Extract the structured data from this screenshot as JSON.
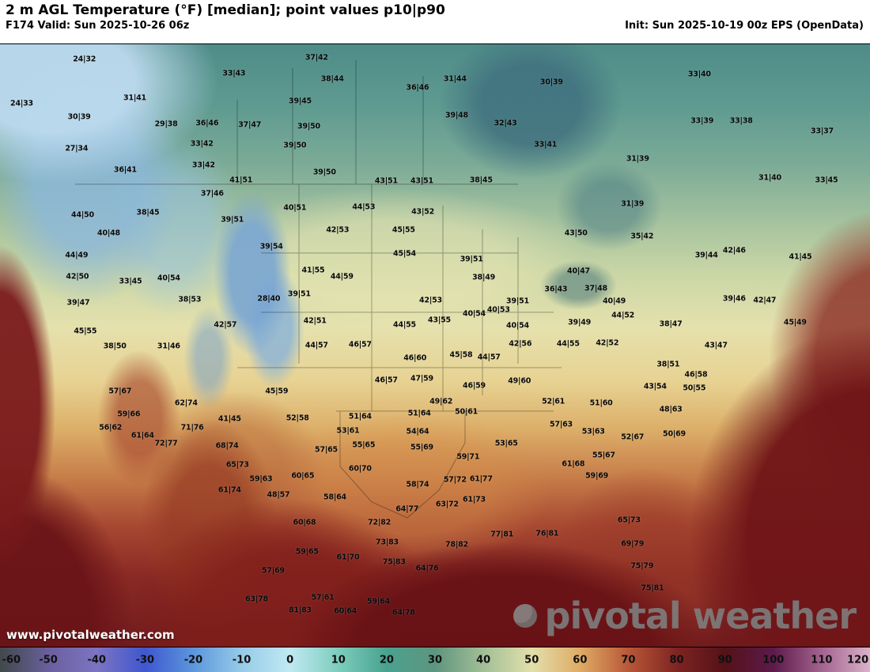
{
  "header": {
    "title": "2 m AGL Temperature (°F) [median]; point values p10|p90",
    "valid": "F174 Valid: Sun 2025-10-26 06z",
    "init": "Init: Sun 2025-10-19 00z EPS (OpenData)"
  },
  "watermark": "www.pivotalweather.com",
  "logo": {
    "text": "pivotal weather"
  },
  "colorbar": {
    "min": -60,
    "max": 120,
    "ticks": [
      -60,
      -50,
      -40,
      -30,
      -20,
      -10,
      0,
      10,
      20,
      30,
      40,
      50,
      60,
      70,
      80,
      90,
      100,
      110,
      120
    ],
    "stops": [
      {
        "v": -60,
        "c": "#41494a"
      },
      {
        "v": -50,
        "c": "#6a5f9e"
      },
      {
        "v": -40,
        "c": "#7d74c2"
      },
      {
        "v": -30,
        "c": "#3f57cf"
      },
      {
        "v": -20,
        "c": "#5b96dc"
      },
      {
        "v": -10,
        "c": "#97cbe8"
      },
      {
        "v": 0,
        "c": "#c0e9f2"
      },
      {
        "v": 10,
        "c": "#7dcdbd"
      },
      {
        "v": 20,
        "c": "#49a28f"
      },
      {
        "v": 30,
        "c": "#5e957e"
      },
      {
        "v": 40,
        "c": "#a2bf96"
      },
      {
        "v": 50,
        "c": "#e2dfab"
      },
      {
        "v": 60,
        "c": "#dfab65"
      },
      {
        "v": 70,
        "c": "#b85838"
      },
      {
        "v": 80,
        "c": "#7e2422"
      },
      {
        "v": 90,
        "c": "#541218"
      },
      {
        "v": 100,
        "c": "#5c1a4a"
      },
      {
        "v": 110,
        "c": "#a3638f"
      },
      {
        "v": 120,
        "c": "#d9b3c9"
      }
    ]
  },
  "map": {
    "points": [
      [
        9.7,
        2.5,
        "24|32"
      ],
      [
        26.9,
        4.9,
        "33|43"
      ],
      [
        36.4,
        2.2,
        "37|42"
      ],
      [
        38.2,
        5.8,
        "38|44"
      ],
      [
        52.3,
        5.8,
        "31|44"
      ],
      [
        63.4,
        6.3,
        "30|39"
      ],
      [
        80.4,
        5.0,
        "33|40"
      ],
      [
        2.5,
        9.8,
        "24|33"
      ],
      [
        15.5,
        8.9,
        "31|41"
      ],
      [
        34.5,
        9.4,
        "39|45"
      ],
      [
        48.0,
        7.2,
        "36|46"
      ],
      [
        9.1,
        12.1,
        "30|39"
      ],
      [
        19.1,
        13.3,
        "29|38"
      ],
      [
        23.8,
        13.1,
        "36|46"
      ],
      [
        28.7,
        13.4,
        "37|47"
      ],
      [
        35.5,
        13.6,
        "39|50"
      ],
      [
        52.5,
        11.8,
        "39|48"
      ],
      [
        58.1,
        13.1,
        "32|43"
      ],
      [
        80.7,
        12.7,
        "33|39"
      ],
      [
        85.2,
        12.7,
        "33|38"
      ],
      [
        94.5,
        14.4,
        "33|37"
      ],
      [
        8.8,
        17.3,
        "27|34"
      ],
      [
        23.2,
        16.5,
        "33|42"
      ],
      [
        33.9,
        16.8,
        "39|50"
      ],
      [
        62.7,
        16.7,
        "33|41"
      ],
      [
        14.4,
        20.9,
        "36|41"
      ],
      [
        23.4,
        20.1,
        "33|42"
      ],
      [
        37.3,
        21.3,
        "39|50"
      ],
      [
        73.3,
        19.0,
        "31|39"
      ],
      [
        27.7,
        22.6,
        "41|51"
      ],
      [
        24.4,
        24.8,
        "37|46"
      ],
      [
        44.4,
        22.7,
        "43|51"
      ],
      [
        48.5,
        22.7,
        "43|51"
      ],
      [
        55.3,
        22.6,
        "38|45"
      ],
      [
        72.7,
        26.5,
        "31|39"
      ],
      [
        88.5,
        22.2,
        "31|40"
      ],
      [
        95.0,
        22.6,
        "33|45"
      ],
      [
        17.0,
        28.0,
        "38|45"
      ],
      [
        9.5,
        28.3,
        "44|50"
      ],
      [
        12.5,
        31.4,
        "40|48"
      ],
      [
        8.8,
        35.0,
        "44|49"
      ],
      [
        8.9,
        38.6,
        "42|50"
      ],
      [
        9.0,
        42.9,
        "39|47"
      ],
      [
        9.8,
        47.6,
        "45|55"
      ],
      [
        13.2,
        50.1,
        "38|50"
      ],
      [
        19.4,
        50.1,
        "31|46"
      ],
      [
        26.7,
        29.1,
        "39|51"
      ],
      [
        33.9,
        27.2,
        "40|51"
      ],
      [
        41.8,
        27.0,
        "44|53"
      ],
      [
        48.6,
        27.8,
        "43|52"
      ],
      [
        31.2,
        33.6,
        "39|54"
      ],
      [
        38.8,
        30.8,
        "42|53"
      ],
      [
        46.4,
        30.8,
        "45|55"
      ],
      [
        36.0,
        37.5,
        "41|55"
      ],
      [
        39.3,
        38.6,
        "44|59"
      ],
      [
        46.5,
        34.8,
        "45|54"
      ],
      [
        54.2,
        35.7,
        "39|51"
      ],
      [
        55.6,
        38.7,
        "38|49"
      ],
      [
        15.0,
        39.4,
        "33|45"
      ],
      [
        19.4,
        38.8,
        "40|54"
      ],
      [
        21.8,
        42.4,
        "38|53"
      ],
      [
        30.9,
        42.3,
        "28|40"
      ],
      [
        34.4,
        41.5,
        "39|51"
      ],
      [
        25.9,
        46.6,
        "42|57"
      ],
      [
        36.2,
        45.9,
        "42|51"
      ],
      [
        49.5,
        42.5,
        "42|53"
      ],
      [
        50.5,
        45.8,
        "43|55"
      ],
      [
        46.5,
        46.6,
        "44|55"
      ],
      [
        57.3,
        44.1,
        "40|53"
      ],
      [
        54.5,
        44.8,
        "40|54"
      ],
      [
        59.5,
        46.7,
        "40|54"
      ],
      [
        59.5,
        42.7,
        "39|51"
      ],
      [
        59.8,
        49.7,
        "42|56"
      ],
      [
        65.3,
        49.7,
        "44|55"
      ],
      [
        69.8,
        49.6,
        "42|52"
      ],
      [
        66.6,
        46.2,
        "39|49"
      ],
      [
        68.5,
        40.6,
        "37|48"
      ],
      [
        66.5,
        37.7,
        "40|47"
      ],
      [
        63.9,
        40.7,
        "36|43"
      ],
      [
        73.8,
        31.9,
        "35|42"
      ],
      [
        66.2,
        31.4,
        "43|50"
      ],
      [
        81.2,
        35.0,
        "39|44"
      ],
      [
        84.4,
        34.3,
        "42|46"
      ],
      [
        92.0,
        35.3,
        "41|45"
      ],
      [
        84.4,
        42.3,
        "39|46"
      ],
      [
        87.9,
        42.5,
        "42|47"
      ],
      [
        91.4,
        46.2,
        "45|49"
      ],
      [
        70.6,
        42.7,
        "40|49"
      ],
      [
        71.6,
        45.0,
        "44|52"
      ],
      [
        77.1,
        46.5,
        "38|47"
      ],
      [
        82.3,
        50.0,
        "43|47"
      ],
      [
        76.8,
        53.1,
        "38|51"
      ],
      [
        75.3,
        56.8,
        "43|54"
      ],
      [
        80.0,
        54.9,
        "46|58"
      ],
      [
        79.8,
        57.1,
        "50|55"
      ],
      [
        77.1,
        60.6,
        "48|63"
      ],
      [
        53.0,
        51.6,
        "45|58"
      ],
      [
        56.2,
        52.0,
        "44|57"
      ],
      [
        41.4,
        49.9,
        "46|57"
      ],
      [
        36.4,
        50.0,
        "44|57"
      ],
      [
        47.7,
        52.1,
        "46|60"
      ],
      [
        44.4,
        55.8,
        "46|57"
      ],
      [
        48.5,
        55.5,
        "47|59"
      ],
      [
        31.8,
        57.6,
        "45|59"
      ],
      [
        54.5,
        56.7,
        "46|59"
      ],
      [
        59.7,
        55.9,
        "49|60"
      ],
      [
        50.7,
        59.3,
        "49|62"
      ],
      [
        53.6,
        61.0,
        "50|61"
      ],
      [
        63.6,
        59.3,
        "52|61"
      ],
      [
        69.1,
        59.6,
        "51|60"
      ],
      [
        13.8,
        57.6,
        "57|67"
      ],
      [
        21.4,
        59.6,
        "62|74"
      ],
      [
        26.4,
        62.2,
        "41|45"
      ],
      [
        34.2,
        62.1,
        "52|58"
      ],
      [
        14.8,
        61.4,
        "59|66"
      ],
      [
        12.7,
        63.6,
        "56|62"
      ],
      [
        16.4,
        65.0,
        "61|64"
      ],
      [
        22.1,
        63.6,
        "71|76"
      ],
      [
        19.1,
        66.3,
        "72|77"
      ],
      [
        26.1,
        66.7,
        "68|74"
      ],
      [
        27.3,
        69.8,
        "65|73"
      ],
      [
        41.4,
        61.8,
        "51|64"
      ],
      [
        40.0,
        64.2,
        "53|61"
      ],
      [
        41.8,
        66.5,
        "55|65"
      ],
      [
        37.5,
        67.3,
        "57|65"
      ],
      [
        48.2,
        61.3,
        "51|64"
      ],
      [
        48.0,
        64.3,
        "54|64"
      ],
      [
        48.5,
        66.9,
        "55|69"
      ],
      [
        58.2,
        66.3,
        "53|65"
      ],
      [
        64.5,
        63.1,
        "57|63"
      ],
      [
        68.2,
        64.3,
        "53|63"
      ],
      [
        72.7,
        65.2,
        "52|67"
      ],
      [
        77.5,
        64.7,
        "50|69"
      ],
      [
        69.4,
        68.2,
        "55|67"
      ],
      [
        65.9,
        69.7,
        "61|68"
      ],
      [
        68.6,
        71.7,
        "59|69"
      ],
      [
        30.0,
        72.2,
        "59|63"
      ],
      [
        34.8,
        71.7,
        "60|65"
      ],
      [
        32.0,
        74.8,
        "48|57"
      ],
      [
        38.5,
        75.2,
        "58|64"
      ],
      [
        41.4,
        70.5,
        "60|70"
      ],
      [
        53.8,
        68.5,
        "59|71"
      ],
      [
        48.0,
        73.1,
        "58|74"
      ],
      [
        52.3,
        72.3,
        "57|72"
      ],
      [
        55.3,
        72.2,
        "61|77"
      ],
      [
        51.4,
        76.4,
        "63|72"
      ],
      [
        54.5,
        75.6,
        "61|73"
      ],
      [
        46.8,
        77.2,
        "64|77"
      ],
      [
        26.4,
        74.0,
        "61|74"
      ],
      [
        35.0,
        79.4,
        "60|68"
      ],
      [
        43.6,
        79.4,
        "72|82"
      ],
      [
        44.5,
        82.7,
        "73|83"
      ],
      [
        52.5,
        83.1,
        "78|82"
      ],
      [
        57.7,
        81.4,
        "77|81"
      ],
      [
        62.9,
        81.2,
        "76|81"
      ],
      [
        72.3,
        79.0,
        "65|73"
      ],
      [
        72.7,
        82.9,
        "69|79"
      ],
      [
        73.8,
        86.6,
        "75|79"
      ],
      [
        75.0,
        90.3,
        "75|81"
      ],
      [
        35.3,
        84.3,
        "59|65"
      ],
      [
        40.0,
        85.2,
        "61|70"
      ],
      [
        45.3,
        86.0,
        "75|83"
      ],
      [
        49.1,
        87.0,
        "64|76"
      ],
      [
        31.4,
        87.4,
        "57|69"
      ],
      [
        29.5,
        92.1,
        "63|78"
      ],
      [
        37.1,
        91.9,
        "57|61"
      ],
      [
        34.5,
        94.0,
        "81|83"
      ],
      [
        39.7,
        94.1,
        "60|64"
      ],
      [
        43.5,
        92.5,
        "59|64"
      ],
      [
        46.4,
        94.4,
        "64|78"
      ]
    ]
  }
}
